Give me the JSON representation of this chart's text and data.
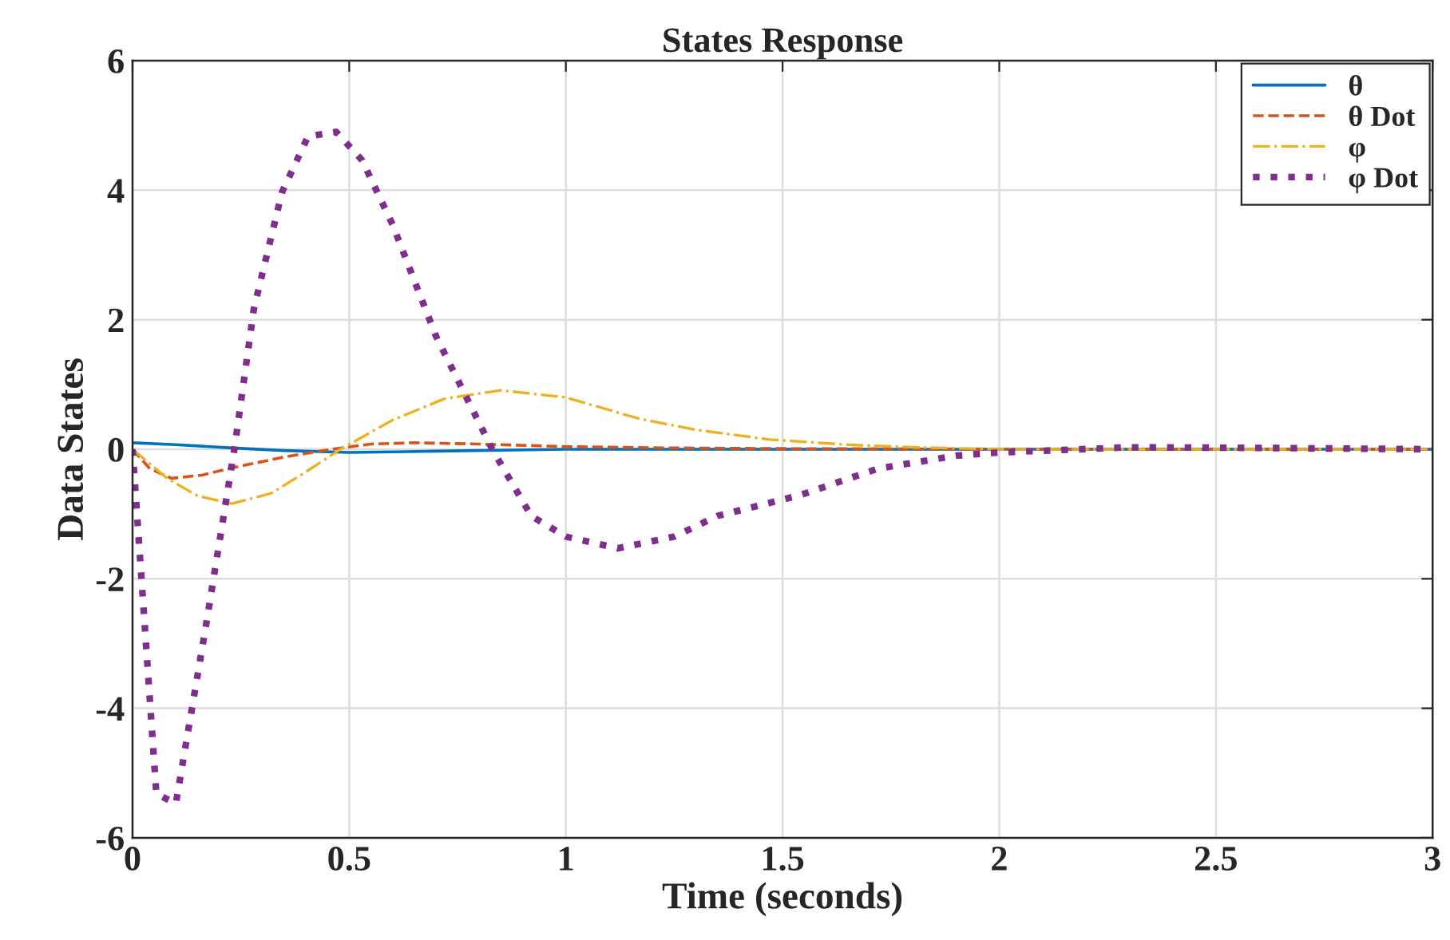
{
  "chart_data": {
    "type": "line",
    "title": "States Response",
    "xlabel": "Time (seconds)",
    "ylabel": "Data States",
    "xlim": [
      0,
      3
    ],
    "xticks": [
      0,
      0.5,
      1,
      1.5,
      2,
      2.5,
      3
    ],
    "ylim": [
      -6,
      6
    ],
    "yticks": [
      -6,
      -4,
      -2,
      0,
      2,
      4,
      6
    ],
    "grid": true,
    "legend": "top right",
    "marker": "none",
    "series": [
      {
        "name": "θ",
        "color": "#0072bd",
        "line_style": "solid",
        "x": [
          0,
          0.1,
          0.23,
          0.35,
          0.5,
          0.7,
          1.0,
          1.5,
          2.0,
          2.5,
          3.0
        ],
        "values": [
          0.1,
          0.07,
          0.02,
          -0.02,
          -0.05,
          -0.03,
          0,
          0,
          0,
          0,
          0
        ]
      },
      {
        "name": "θ Dot",
        "color": "#d95319",
        "line_style": "dashed",
        "x": [
          0,
          0.04,
          0.09,
          0.16,
          0.235,
          0.35,
          0.46,
          0.55,
          0.65,
          0.8,
          1.0,
          1.25,
          1.5,
          2.0,
          2.5,
          3.0
        ],
        "values": [
          0,
          -0.3,
          -0.45,
          -0.4,
          -0.28,
          -0.12,
          0,
          0.08,
          0.1,
          0.08,
          0.04,
          0.02,
          0.01,
          0,
          0,
          0
        ]
      },
      {
        "name": "φ",
        "color": "#edb120",
        "line_style": "dashdot",
        "x": [
          0,
          0.08,
          0.15,
          0.23,
          0.32,
          0.4,
          0.48,
          0.6,
          0.72,
          0.85,
          1.0,
          1.17,
          1.3,
          1.47,
          1.65,
          1.8,
          2.0,
          2.5,
          3.0
        ],
        "values": [
          0,
          -0.45,
          -0.72,
          -0.84,
          -0.68,
          -0.35,
          0,
          0.45,
          0.78,
          0.91,
          0.8,
          0.47,
          0.3,
          0.15,
          0.07,
          0.03,
          0,
          0,
          0
        ]
      },
      {
        "name": "φ Dot",
        "color": "#7e2f8e",
        "line_style": "dotted",
        "x": [
          0,
          0.055,
          0.1,
          0.17,
          0.235,
          0.28,
          0.345,
          0.405,
          0.47,
          0.53,
          0.6,
          0.7,
          0.83,
          0.92,
          1.0,
          1.12,
          1.25,
          1.35,
          1.54,
          1.72,
          1.9,
          2.0,
          2.3,
          2.6,
          3.0
        ],
        "values": [
          0,
          -5.32,
          -5.47,
          -2.7,
          0,
          2.17,
          3.97,
          4.83,
          4.9,
          4.46,
          3.47,
          1.75,
          0,
          -1.03,
          -1.35,
          -1.53,
          -1.35,
          -1.03,
          -0.71,
          -0.3,
          -0.1,
          -0.05,
          0.03,
          0.02,
          0
        ]
      }
    ]
  }
}
